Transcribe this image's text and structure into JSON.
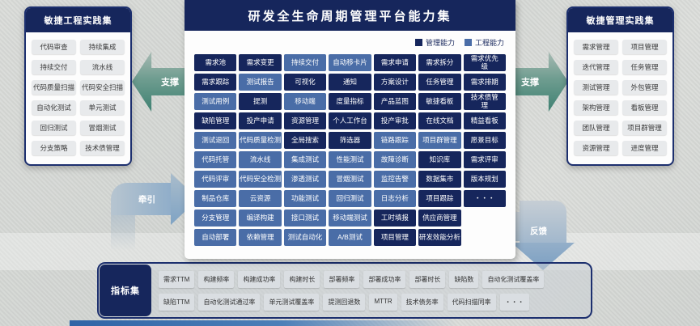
{
  "colors": {
    "management_capability": "#16265c",
    "engineering_capability": "#4a6da7",
    "support_arrow_teal": "#3f8172",
    "flow_arrow_blue": "#7fa3c4",
    "practice_chip_gray": "#e8eaec"
  },
  "left_panel": {
    "title": "敏捷工程实践集",
    "items": [
      "代码审查",
      "持续集成",
      "持续交付",
      "流水线",
      "代码质量扫描",
      "代码安全扫描",
      "自动化测试",
      "单元测试",
      "回归测试",
      "冒烟测试",
      "分支策略",
      "技术债管理"
    ]
  },
  "right_panel": {
    "title": "敏捷管理实践集",
    "items": [
      "需求管理",
      "项目管理",
      "迭代管理",
      "任务管理",
      "测试管理",
      "外包管理",
      "架构管理",
      "看板管理",
      "团队管理",
      "项目群管理",
      "资源管理",
      "进度管理"
    ]
  },
  "center_panel": {
    "title": "研发全生命周期管理平台能力集",
    "legend": [
      {
        "label": "管理能力",
        "type": "mgmt"
      },
      {
        "label": "工程能力",
        "type": "eng"
      }
    ],
    "grid_a": [
      {
        "label": "需求池",
        "type": "mgmt"
      },
      {
        "label": "需求变更",
        "type": "mgmt"
      },
      {
        "label": "持续交付",
        "type": "eng"
      },
      {
        "label": "自动移卡片",
        "type": "eng"
      },
      {
        "label": "需求申请",
        "type": "mgmt"
      },
      {
        "label": "需求拆分",
        "type": "mgmt"
      },
      {
        "label": "需求优先\n级",
        "type": "mgmt"
      },
      {
        "label": "需求跟踪",
        "type": "mgmt"
      },
      {
        "label": "测试报告",
        "type": "eng"
      },
      {
        "label": "可视化",
        "type": "mgmt"
      },
      {
        "label": "通知",
        "type": "mgmt"
      },
      {
        "label": "方案设计",
        "type": "mgmt"
      },
      {
        "label": "任务管理",
        "type": "mgmt"
      },
      {
        "label": "需求排期",
        "type": "mgmt"
      },
      {
        "label": "测试用例",
        "type": "eng"
      },
      {
        "label": "提测",
        "type": "mgmt"
      },
      {
        "label": "移动端",
        "type": "eng"
      },
      {
        "label": "度量指标",
        "type": "mgmt"
      },
      {
        "label": "产品蓝图",
        "type": "mgmt"
      },
      {
        "label": "敏捷看板",
        "type": "mgmt"
      },
      {
        "label": "技术债管\n理",
        "type": "mgmt"
      },
      {
        "label": "缺陷管理",
        "type": "mgmt"
      },
      {
        "label": "投产申请",
        "type": "mgmt"
      },
      {
        "label": "资源管理",
        "type": "mgmt"
      },
      {
        "label": "个人工作台",
        "type": "mgmt"
      },
      {
        "label": "投产审批",
        "type": "mgmt"
      },
      {
        "label": "在线文档",
        "type": "mgmt"
      },
      {
        "label": "精益看板",
        "type": "mgmt"
      },
      {
        "label": "测试退回",
        "type": "eng"
      },
      {
        "label": "代码质量检测",
        "type": "eng"
      },
      {
        "label": "全局搜索",
        "type": "mgmt"
      },
      {
        "label": "筛选器",
        "type": "mgmt"
      },
      {
        "label": "链路跟踪",
        "type": "eng"
      },
      {
        "label": "项目群管理",
        "type": "eng"
      },
      {
        "label": "愿景目标",
        "type": "mgmt"
      },
      {
        "label": "代码托管",
        "type": "eng"
      },
      {
        "label": "流水线",
        "type": "eng"
      },
      {
        "label": "集成测试",
        "type": "eng"
      },
      {
        "label": "性能测试",
        "type": "eng"
      },
      {
        "label": "故障诊断",
        "type": "eng"
      },
      {
        "label": "知识库",
        "type": "mgmt"
      },
      {
        "label": "需求评审",
        "type": "mgmt"
      },
      {
        "label": "代码评审",
        "type": "eng"
      },
      {
        "label": "代码安全检测",
        "type": "eng"
      },
      {
        "label": "渗透测试",
        "type": "eng"
      },
      {
        "label": "冒烟测试",
        "type": "eng"
      },
      {
        "label": "监控告警",
        "type": "eng"
      },
      {
        "label": "数据集市",
        "type": "mgmt"
      },
      {
        "label": "版本规划",
        "type": "mgmt"
      },
      {
        "label": "制品仓库",
        "type": "eng"
      },
      {
        "label": "云资源",
        "type": "eng"
      },
      {
        "label": "功能测试",
        "type": "eng"
      },
      {
        "label": "回归测试",
        "type": "eng"
      },
      {
        "label": "日志分析",
        "type": "eng"
      },
      {
        "label": "项目跟踪",
        "type": "mgmt"
      },
      {
        "label": "・・・",
        "type": "mgmt"
      }
    ],
    "grid_b": [
      {
        "label": "分支管理",
        "type": "eng"
      },
      {
        "label": "编译构建",
        "type": "eng"
      },
      {
        "label": "接口测试",
        "type": "eng"
      },
      {
        "label": "移动端测试",
        "type": "eng"
      },
      {
        "label": "工时填报",
        "type": "mgmt"
      },
      {
        "label": "供应商管理",
        "type": "mgmt"
      },
      {
        "label": "自动部署",
        "type": "eng"
      },
      {
        "label": "依赖管理",
        "type": "eng"
      },
      {
        "label": "测试自动化",
        "type": "eng"
      },
      {
        "label": "A/B测试",
        "type": "eng"
      },
      {
        "label": "项目管理",
        "type": "mgmt"
      },
      {
        "label": "研发效能分析",
        "type": "mgmt"
      }
    ]
  },
  "arrows": {
    "support_left": "支撑",
    "support_right": "支撑",
    "pull": "牵引",
    "feedback": "反馈"
  },
  "metrics_bar": {
    "title": "指标集",
    "row1": [
      "需求TTM",
      "构建频率",
      "构建成功率",
      "构建时长",
      "部署频率",
      "部署成功率",
      "部署时长",
      "缺陷数",
      "自动化测试覆盖率"
    ],
    "row2": [
      "缺陷TTM",
      "自动化测试通过率",
      "单元测试覆盖率",
      "提测回退数",
      "MTTR",
      "技术债务率",
      "代码扫描同率",
      "・・・"
    ]
  }
}
